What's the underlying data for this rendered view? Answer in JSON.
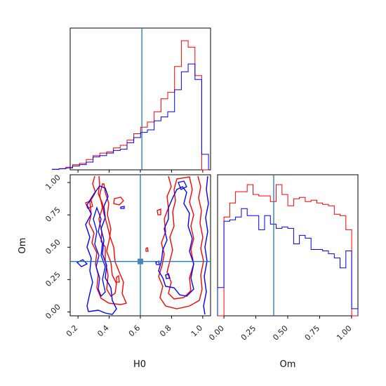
{
  "colors": {
    "series_a": "#ff0000",
    "series_b": "#0000ff",
    "truth": "#1f77b4"
  },
  "chart_data": {
    "type": "corner-plot",
    "parameters": [
      "H0",
      "Om"
    ],
    "truth": {
      "H0": 0.6,
      "Om": 0.39
    },
    "h0_histogram": {
      "type": "bar",
      "bins": [
        0.0,
        0.0455,
        0.091,
        0.1365,
        0.182,
        0.2275,
        0.273,
        0.3185,
        0.364,
        0.4095,
        0.455,
        0.5005,
        0.546,
        0.5915,
        0.637,
        0.6825,
        0.728,
        0.7735,
        0.819,
        0.8645,
        0.91,
        0.9555,
        1.001,
        1.0465
      ],
      "series": [
        {
          "color": "#ff0000",
          "values": [
            0.005,
            0.01,
            0.02,
            0.04,
            0.05,
            0.08,
            0.11,
            0.13,
            0.14,
            0.17,
            0.19,
            0.23,
            0.28,
            0.33,
            0.37,
            0.45,
            0.55,
            0.6,
            0.8,
            1.0,
            0.95,
            0.73,
            0.0
          ]
        },
        {
          "color": "#0000ff",
          "values": [
            0.003,
            0.008,
            0.015,
            0.03,
            0.04,
            0.06,
            0.1,
            0.11,
            0.13,
            0.15,
            0.16,
            0.21,
            0.25,
            0.29,
            0.31,
            0.38,
            0.41,
            0.45,
            0.62,
            0.76,
            0.82,
            0.7,
            0.12
          ]
        }
      ],
      "xlim": [
        0.12,
        1.06
      ]
    },
    "om_histogram": {
      "type": "bar",
      "bins": [
        -0.05,
        -0.0,
        0.0455,
        0.091,
        0.1365,
        0.182,
        0.2275,
        0.273,
        0.3185,
        0.364,
        0.4095,
        0.455,
        0.5005,
        0.546,
        0.5915,
        0.637,
        0.6825,
        0.728,
        0.7735,
        0.819,
        0.8645,
        0.91,
        0.9555,
        1.001,
        1.05
      ],
      "series": [
        {
          "color": "#ff0000",
          "values": [
            0.0,
            0.7,
            0.8,
            0.88,
            0.88,
            0.93,
            0.86,
            0.85,
            0.85,
            0.81,
            0.93,
            0.86,
            0.78,
            0.83,
            0.84,
            0.81,
            0.82,
            0.8,
            0.79,
            0.78,
            0.72,
            0.71,
            0.61,
            0.0
          ]
        },
        {
          "color": "#0000ff",
          "values": [
            0.2,
            0.67,
            0.68,
            0.7,
            0.76,
            0.71,
            0.71,
            0.61,
            0.71,
            0.65,
            0.62,
            0.63,
            0.62,
            0.51,
            0.57,
            0.55,
            0.47,
            0.47,
            0.46,
            0.44,
            0.41,
            0.34,
            0.46,
            0.05
          ]
        }
      ],
      "xlim": [
        -0.05,
        1.05
      ]
    },
    "joint_contour": {
      "type": "contour",
      "xlim": [
        0.15,
        1.05
      ],
      "ylim": [
        -0.03,
        1.06
      ]
    },
    "h0_ticks": [
      0.2,
      0.4,
      0.6,
      0.8,
      1.0
    ],
    "h0_tick_labels": [
      "0.2",
      "0.4",
      "0.6",
      "0.8",
      "1.0"
    ],
    "om_ticks": [
      0.0,
      0.25,
      0.5,
      0.75,
      1.0
    ],
    "om_tick_labels": [
      "0.00",
      "0.25",
      "0.50",
      "0.75",
      "1.00"
    ],
    "xlabel_left": "H0",
    "xlabel_right": "Om",
    "ylabel": "Om"
  }
}
